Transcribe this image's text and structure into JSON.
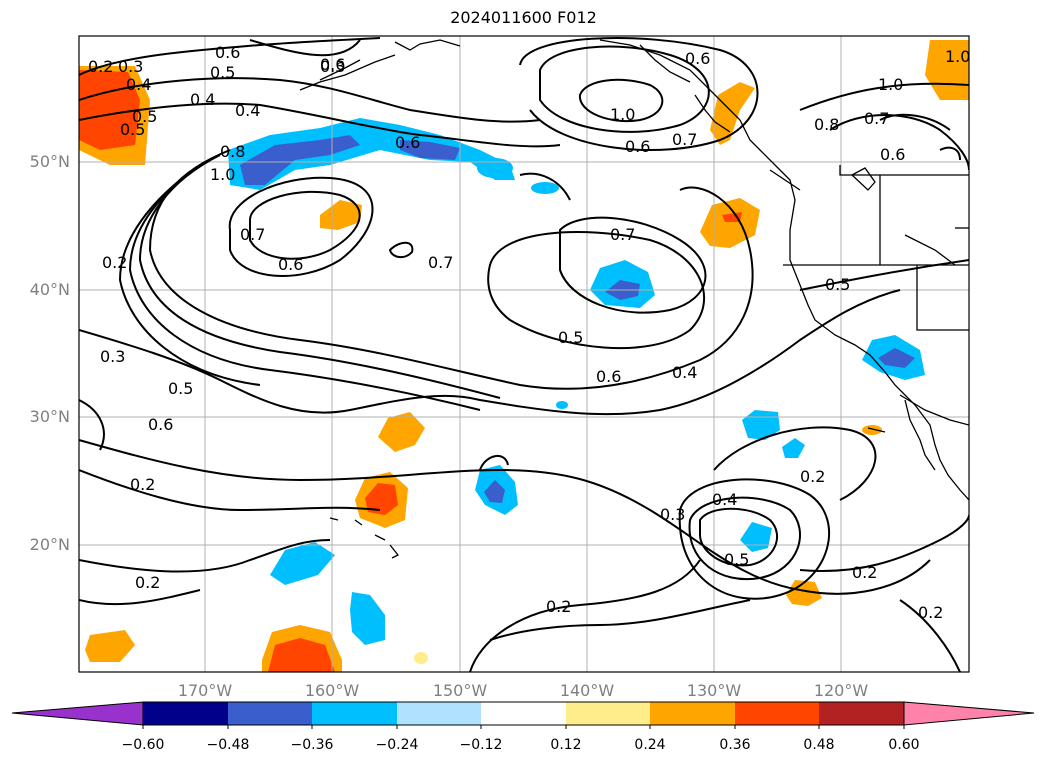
{
  "title": "2024011600 F012",
  "lat_labels": [
    "50°N",
    "40°N",
    "30°N",
    "20°N"
  ],
  "lon_labels": [
    "170°W",
    "160°W",
    "150°W",
    "140°W",
    "130°W",
    "120°W"
  ],
  "colorbar": {
    "ticks": [
      "−0.60",
      "−0.48",
      "−0.36",
      "−0.24",
      "−0.12",
      "0.12",
      "0.24",
      "0.36",
      "0.48",
      "0.60"
    ],
    "colors": [
      "#9932cc",
      "#00008b",
      "#3a5fcd",
      "#00bfff",
      "#b0e2ff",
      "#ffffff",
      "#ffec8b",
      "#ffa500",
      "#ff4500",
      "#b22222",
      "#ff82ab"
    ]
  },
  "contour_labels": [
    "0.2",
    "0.3",
    "0.4",
    "0.5",
    "0.6",
    "0.6",
    "0.5",
    "0.4",
    "0.4",
    "0.5",
    "0.8",
    "1.0",
    "0.7",
    "0.6",
    "0.6",
    "0.3",
    "0.6",
    "1.0",
    "0.7",
    "0.6",
    "1.0",
    "0.8",
    "0.7",
    "0.6",
    "1.0",
    "0.7",
    "0.7",
    "0.5",
    "0.6",
    "0.4",
    "0.5",
    "0.2",
    "0.3",
    "0.5",
    "0.6",
    "0.2",
    "0.2",
    "0.4",
    "0.3",
    "0.5",
    "0.2",
    "0.2",
    "0.2",
    "0.2"
  ],
  "colors": {
    "land_line": "#000000",
    "grid": "#b0b0b0",
    "contour": "#000000"
  }
}
